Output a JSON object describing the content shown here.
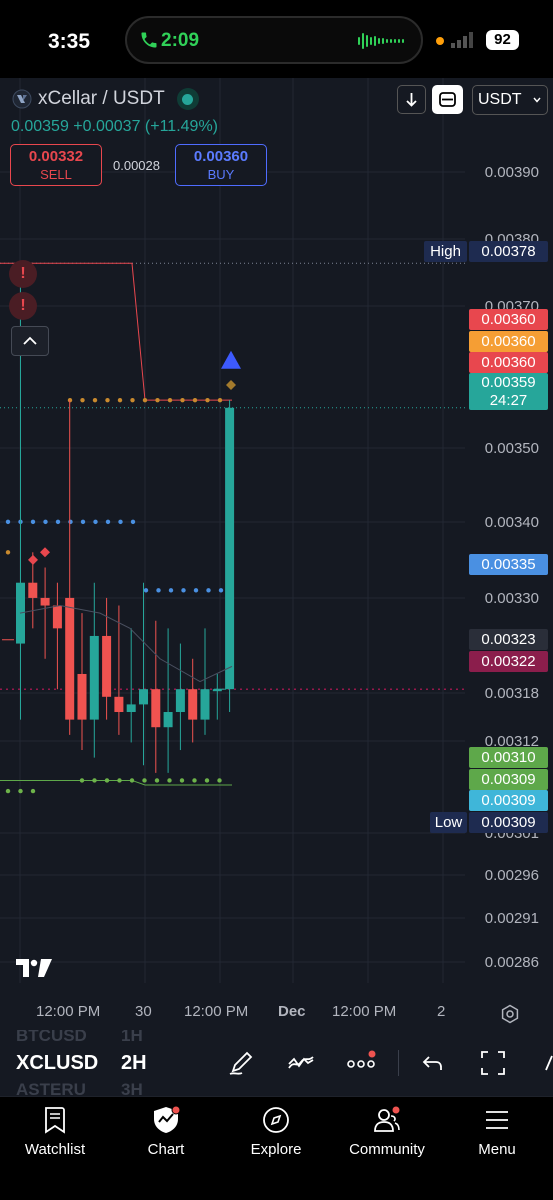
{
  "status_bar": {
    "time": "3:35",
    "call_duration": "2:09",
    "battery": "92",
    "icons": [
      "phone-icon",
      "audio-wave-icon",
      "mic-dot-icon",
      "signal-icon",
      "battery-icon"
    ]
  },
  "header": {
    "symbol": "xCellar / USDT",
    "last_price": "0.00359",
    "change": "+0.00037 (+11.49%)",
    "sell_price": "0.00332",
    "sell_label": "SELL",
    "spread": "0.00028",
    "buy_price": "0.00360",
    "buy_label": "BUY",
    "currency": "USDT"
  },
  "chart": {
    "price_axis": [
      "0.00390",
      "0.00380",
      "0.00370",
      "0.00350",
      "0.00340",
      "0.00330",
      "0.00318",
      "0.00312",
      "0.00301",
      "0.00296",
      "0.00291",
      "0.00286"
    ],
    "tags": {
      "high_label": "High",
      "high_value": "0.00378",
      "t1": "0.00360",
      "t2": "0.00360",
      "t3": "0.00360",
      "current": "0.00359",
      "countdown": "24:27",
      "mid": "0.00335",
      "v323": "0.00323",
      "v322": "0.00322",
      "g310": "0.00310",
      "g309": "0.00309",
      "c309": "0.00309",
      "low_label": "Low",
      "low_value": "0.00309"
    },
    "time_axis": [
      "12:00 PM",
      "30",
      "12:00 PM",
      "Dec",
      "12:00 PM",
      "2"
    ],
    "colors": {
      "up": "#26a69a",
      "down": "#ef5350",
      "background": "#151922"
    }
  },
  "chart_data": {
    "type": "candlestick",
    "interval": "2H",
    "symbol": "XCLUSD",
    "candles": [
      {
        "o": 0.00328,
        "h": 0.00378,
        "l": 0.00318,
        "c": 0.00336,
        "dir": "up"
      },
      {
        "o": 0.00336,
        "h": 0.0034,
        "l": 0.0033,
        "c": 0.00334,
        "dir": "down"
      },
      {
        "o": 0.00334,
        "h": 0.00338,
        "l": 0.00326,
        "c": 0.00333,
        "dir": "down"
      },
      {
        "o": 0.00333,
        "h": 0.00336,
        "l": 0.00322,
        "c": 0.0033,
        "dir": "down"
      },
      {
        "o": 0.00334,
        "h": 0.0036,
        "l": 0.00316,
        "c": 0.00318,
        "dir": "down"
      },
      {
        "o": 0.00324,
        "h": 0.00332,
        "l": 0.00314,
        "c": 0.00318,
        "dir": "down"
      },
      {
        "o": 0.00318,
        "h": 0.00336,
        "l": 0.00313,
        "c": 0.00329,
        "dir": "up"
      },
      {
        "o": 0.00329,
        "h": 0.00334,
        "l": 0.00318,
        "c": 0.00321,
        "dir": "down"
      },
      {
        "o": 0.00321,
        "h": 0.00333,
        "l": 0.00316,
        "c": 0.00319,
        "dir": "down"
      },
      {
        "o": 0.00319,
        "h": 0.0033,
        "l": 0.00315,
        "c": 0.0032,
        "dir": "up"
      },
      {
        "o": 0.0032,
        "h": 0.00336,
        "l": 0.00312,
        "c": 0.00322,
        "dir": "up"
      },
      {
        "o": 0.00322,
        "h": 0.00331,
        "l": 0.00311,
        "c": 0.00317,
        "dir": "down"
      },
      {
        "o": 0.00317,
        "h": 0.0033,
        "l": 0.00311,
        "c": 0.00319,
        "dir": "up"
      },
      {
        "o": 0.00319,
        "h": 0.00328,
        "l": 0.00314,
        "c": 0.00322,
        "dir": "up"
      },
      {
        "o": 0.00322,
        "h": 0.00326,
        "l": 0.00315,
        "c": 0.00318,
        "dir": "down"
      },
      {
        "o": 0.00318,
        "h": 0.0033,
        "l": 0.00316,
        "c": 0.00322,
        "dir": "up"
      },
      {
        "o": 0.00322,
        "h": 0.00324,
        "l": 0.00318,
        "c": 0.00322,
        "dir": "up"
      },
      {
        "o": 0.00322,
        "h": 0.0036,
        "l": 0.00319,
        "c": 0.00359,
        "dir": "up"
      }
    ],
    "levels": {
      "high": 0.00378,
      "low": 0.00309,
      "current": 0.00359,
      "blue_dots_upper": 0.00344,
      "blue_dots_mid": 0.00335,
      "orange_dots": 0.0036,
      "green_dots": 0.0031,
      "magenta_line": 0.00322
    },
    "ylim": [
      0.00283,
      0.00395
    ],
    "legend": "none",
    "grid": true
  },
  "toolbar": {
    "ghost_symbol_above": "BTCUSD",
    "ghost_symbol_below": "ASTERU",
    "ghost_interval_above": "1H",
    "ghost_interval_below": "3H",
    "symbol": "XCLUSD",
    "interval": "2H",
    "icons": [
      "draw-icon",
      "indicators-icon",
      "more-icon",
      "undo-icon",
      "fullscreen-icon"
    ]
  },
  "tabs": [
    {
      "label": "Watchlist",
      "icon": "watchlist-icon"
    },
    {
      "label": "Chart",
      "icon": "chart-icon"
    },
    {
      "label": "Explore",
      "icon": "compass-icon"
    },
    {
      "label": "Community",
      "icon": "community-icon"
    },
    {
      "label": "Menu",
      "icon": "menu-icon"
    }
  ]
}
